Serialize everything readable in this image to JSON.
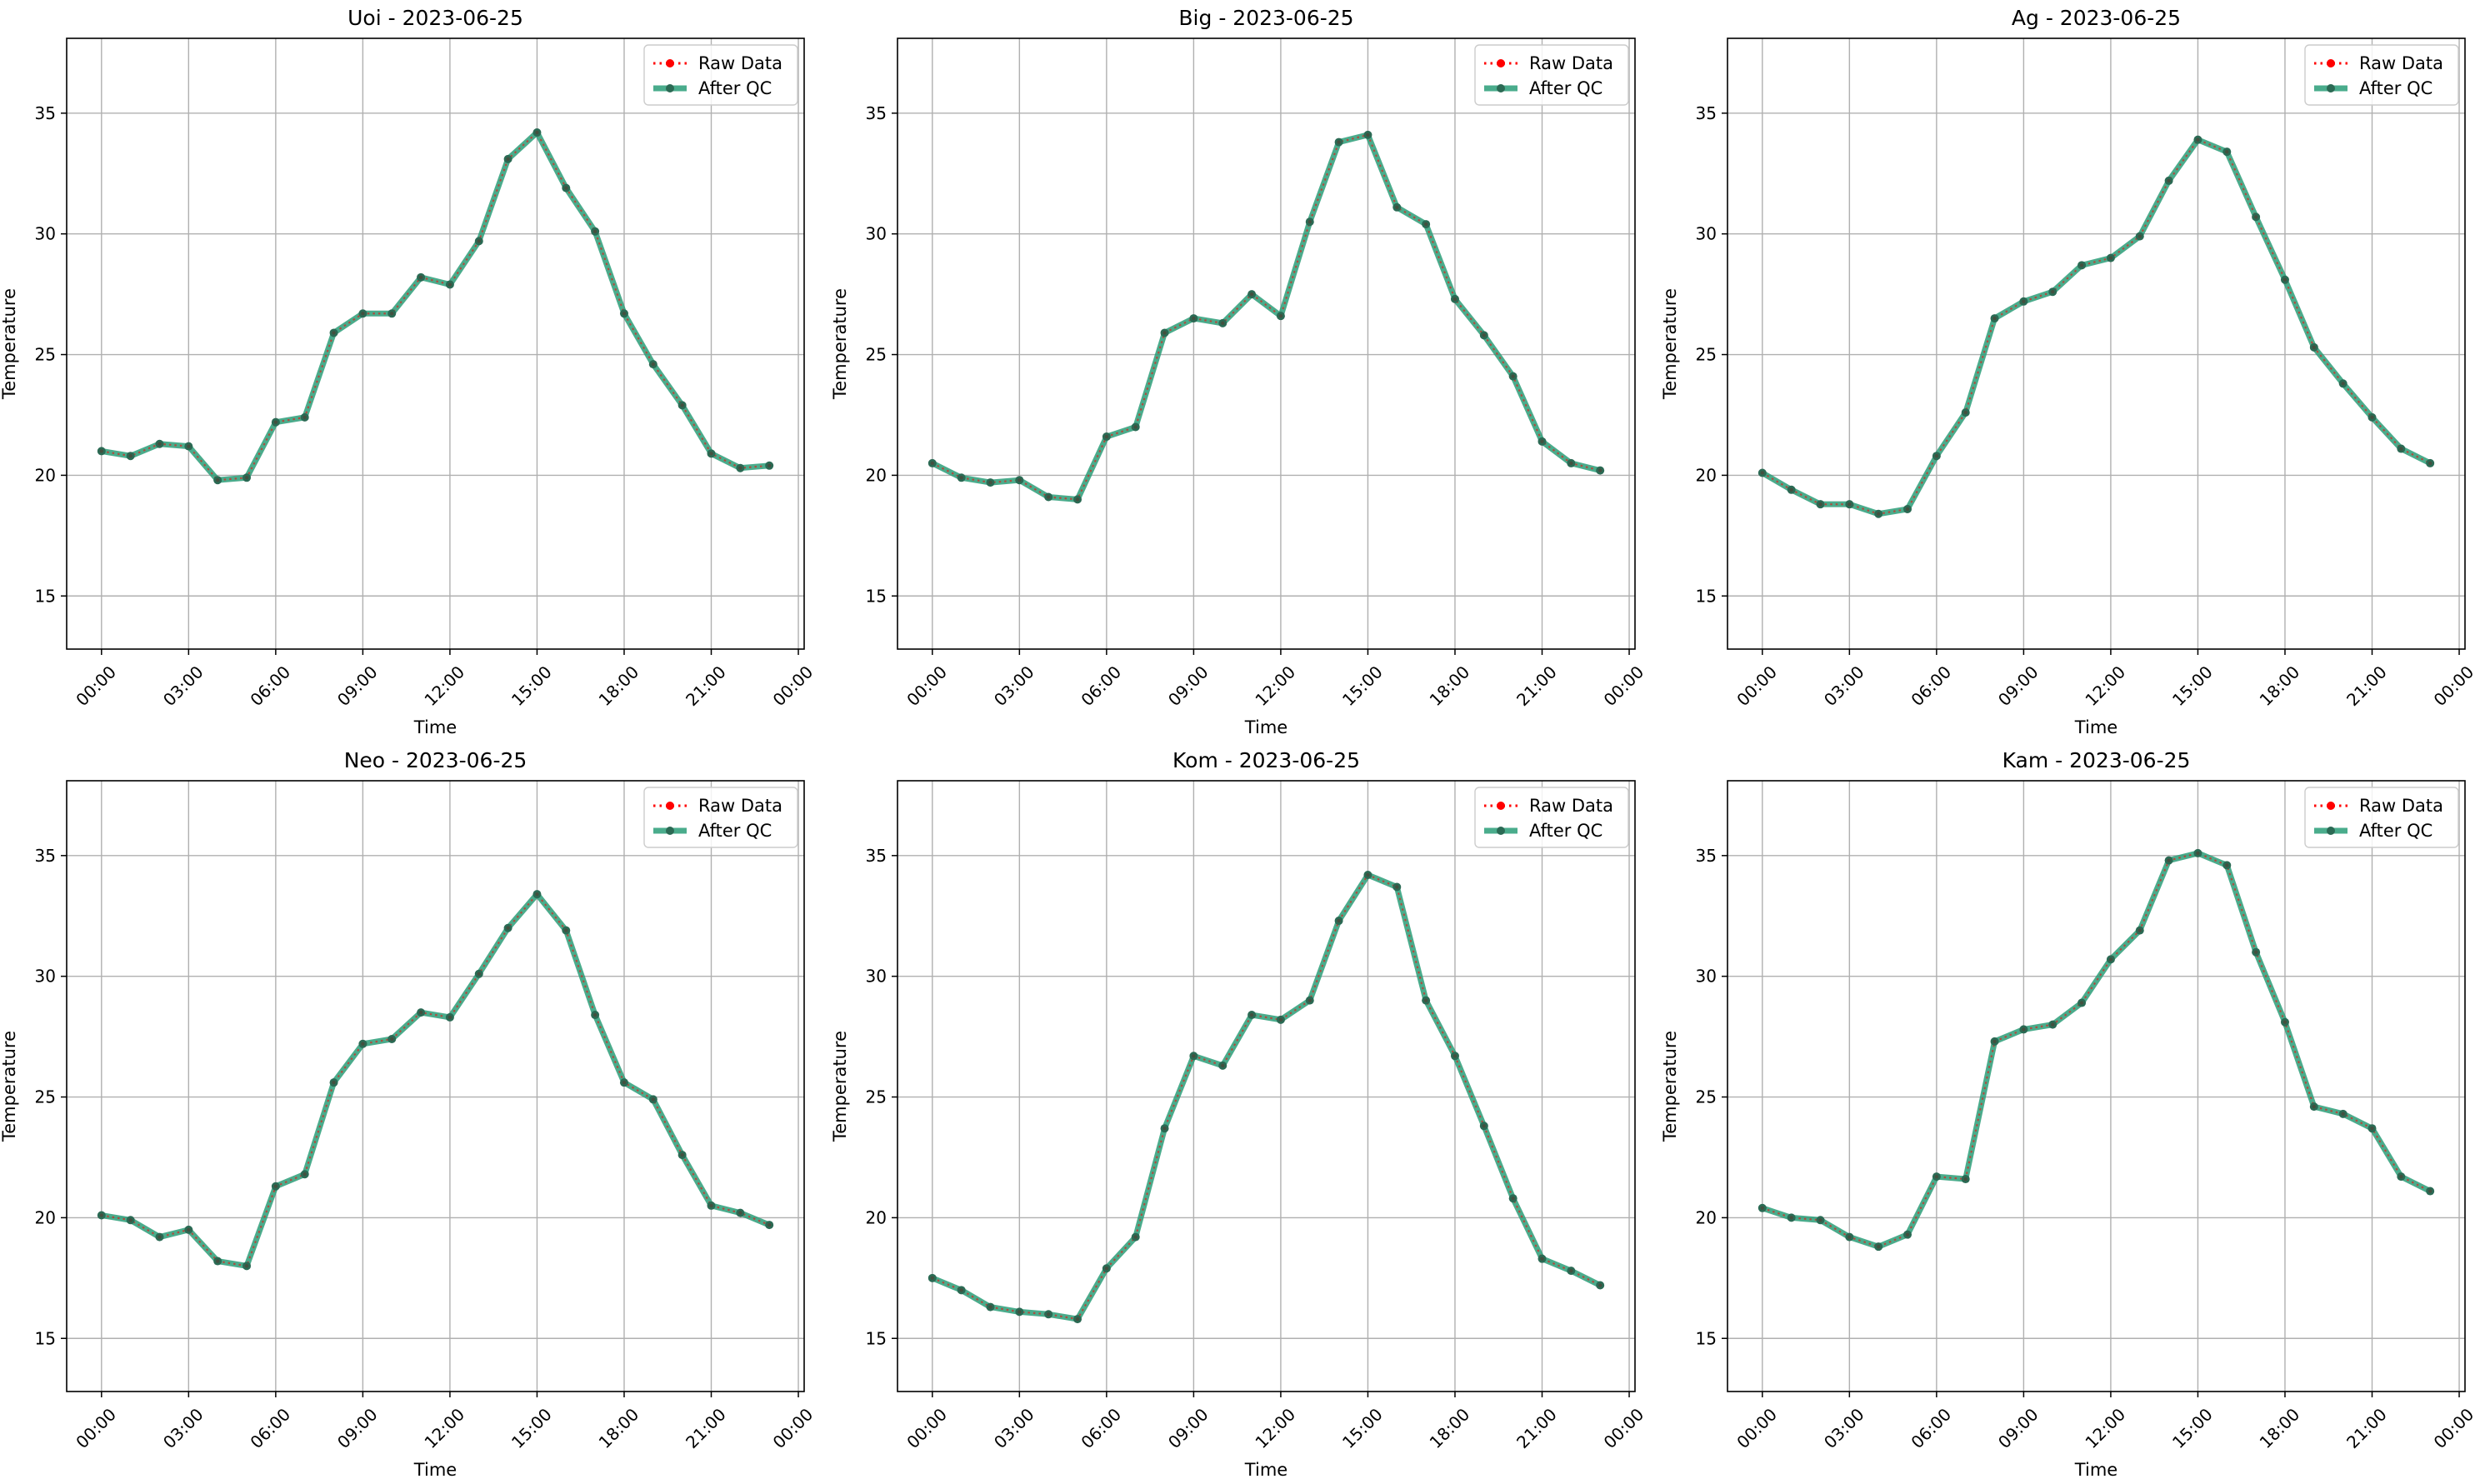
{
  "chart_data": [
    {
      "type": "line",
      "title": "Uoi - 2023-06-25",
      "xlabel": "Time",
      "ylabel": "Temperature",
      "x_ticks": [
        "00:00",
        "03:00",
        "06:00",
        "09:00",
        "12:00",
        "15:00",
        "18:00",
        "21:00",
        "00:00"
      ],
      "y_ticks": [
        15,
        20,
        25,
        30,
        35
      ],
      "xlim": [
        -1.2,
        24.2
      ],
      "ylim": [
        12.8,
        38.1
      ],
      "grid": true,
      "legend_placement": "top-right",
      "x": [
        0,
        1,
        2,
        3,
        4,
        5,
        6,
        7,
        8,
        9,
        10,
        11,
        12,
        13,
        14,
        15,
        16,
        17,
        18,
        19,
        20,
        21,
        22,
        23
      ],
      "series": [
        {
          "name": "Raw Data",
          "color": "#ff0000",
          "values": [
            21.0,
            20.8,
            21.3,
            21.2,
            19.8,
            19.9,
            22.2,
            22.4,
            25.9,
            26.7,
            26.7,
            28.2,
            27.9,
            29.7,
            33.1,
            34.2,
            31.9,
            30.1,
            26.7,
            24.6,
            22.9,
            20.9,
            20.3,
            20.4
          ]
        },
        {
          "name": "After QC",
          "color": "#2a9d78",
          "values": [
            21.0,
            20.8,
            21.3,
            21.2,
            19.8,
            19.9,
            22.2,
            22.4,
            25.9,
            26.7,
            26.7,
            28.2,
            27.9,
            29.7,
            33.1,
            34.2,
            31.9,
            30.1,
            26.7,
            24.6,
            22.9,
            20.9,
            20.3,
            20.4
          ]
        }
      ]
    },
    {
      "type": "line",
      "title": "Big - 2023-06-25",
      "xlabel": "Time",
      "ylabel": "Temperature",
      "x_ticks": [
        "00:00",
        "03:00",
        "06:00",
        "09:00",
        "12:00",
        "15:00",
        "18:00",
        "21:00",
        "00:00"
      ],
      "y_ticks": [
        15,
        20,
        25,
        30,
        35
      ],
      "xlim": [
        -1.2,
        24.2
      ],
      "ylim": [
        12.8,
        38.1
      ],
      "grid": true,
      "legend_placement": "top-right",
      "x": [
        0,
        1,
        2,
        3,
        4,
        5,
        6,
        7,
        8,
        9,
        10,
        11,
        12,
        13,
        14,
        15,
        16,
        17,
        18,
        19,
        20,
        21,
        22,
        23
      ],
      "series": [
        {
          "name": "Raw Data",
          "color": "#ff0000",
          "values": [
            20.5,
            19.9,
            19.7,
            19.8,
            19.1,
            19.0,
            21.6,
            22.0,
            25.9,
            26.5,
            26.3,
            27.5,
            26.6,
            30.5,
            33.8,
            34.1,
            31.1,
            30.4,
            27.3,
            25.8,
            24.1,
            21.4,
            20.5,
            20.2
          ]
        },
        {
          "name": "After QC",
          "color": "#2a9d78",
          "values": [
            20.5,
            19.9,
            19.7,
            19.8,
            19.1,
            19.0,
            21.6,
            22.0,
            25.9,
            26.5,
            26.3,
            27.5,
            26.6,
            30.5,
            33.8,
            34.1,
            31.1,
            30.4,
            27.3,
            25.8,
            24.1,
            21.4,
            20.5,
            20.2
          ]
        }
      ]
    },
    {
      "type": "line",
      "title": "Ag - 2023-06-25",
      "xlabel": "Time",
      "ylabel": "Temperature",
      "x_ticks": [
        "00:00",
        "03:00",
        "06:00",
        "09:00",
        "12:00",
        "15:00",
        "18:00",
        "21:00",
        "00:00"
      ],
      "y_ticks": [
        15,
        20,
        25,
        30,
        35
      ],
      "xlim": [
        -1.2,
        24.2
      ],
      "ylim": [
        12.8,
        38.1
      ],
      "grid": true,
      "legend_placement": "top-right",
      "x": [
        0,
        1,
        2,
        3,
        4,
        5,
        6,
        7,
        8,
        9,
        10,
        11,
        12,
        13,
        14,
        15,
        16,
        17,
        18,
        19,
        20,
        21,
        22,
        23
      ],
      "series": [
        {
          "name": "Raw Data",
          "color": "#ff0000",
          "values": [
            20.1,
            19.4,
            18.8,
            18.8,
            18.4,
            18.6,
            20.8,
            22.6,
            26.5,
            27.2,
            27.6,
            28.7,
            29.0,
            29.9,
            32.2,
            33.9,
            33.4,
            30.7,
            28.1,
            25.3,
            23.8,
            22.4,
            21.1,
            20.5
          ]
        },
        {
          "name": "After QC",
          "color": "#2a9d78",
          "values": [
            20.1,
            19.4,
            18.8,
            18.8,
            18.4,
            18.6,
            20.8,
            22.6,
            26.5,
            27.2,
            27.6,
            28.7,
            29.0,
            29.9,
            32.2,
            33.9,
            33.4,
            30.7,
            28.1,
            25.3,
            23.8,
            22.4,
            21.1,
            20.5
          ]
        }
      ]
    },
    {
      "type": "line",
      "title": "Neo - 2023-06-25",
      "xlabel": "Time",
      "ylabel": "Temperature",
      "x_ticks": [
        "00:00",
        "03:00",
        "06:00",
        "09:00",
        "12:00",
        "15:00",
        "18:00",
        "21:00",
        "00:00"
      ],
      "y_ticks": [
        15,
        20,
        25,
        30,
        35
      ],
      "xlim": [
        -1.2,
        24.2
      ],
      "ylim": [
        12.8,
        38.1
      ],
      "grid": true,
      "legend_placement": "top-right",
      "x": [
        0,
        1,
        2,
        3,
        4,
        5,
        6,
        7,
        8,
        9,
        10,
        11,
        12,
        13,
        14,
        15,
        16,
        17,
        18,
        19,
        20,
        21,
        22,
        23
      ],
      "series": [
        {
          "name": "Raw Data",
          "color": "#ff0000",
          "values": [
            20.1,
            19.9,
            19.2,
            19.5,
            18.2,
            18.0,
            21.3,
            21.8,
            25.6,
            27.2,
            27.4,
            28.5,
            28.3,
            30.1,
            32.0,
            33.4,
            31.9,
            28.4,
            25.6,
            24.9,
            22.6,
            20.5,
            20.2,
            19.7
          ]
        },
        {
          "name": "After QC",
          "color": "#2a9d78",
          "values": [
            20.1,
            19.9,
            19.2,
            19.5,
            18.2,
            18.0,
            21.3,
            21.8,
            25.6,
            27.2,
            27.4,
            28.5,
            28.3,
            30.1,
            32.0,
            33.4,
            31.9,
            28.4,
            25.6,
            24.9,
            22.6,
            20.5,
            20.2,
            19.7
          ]
        }
      ]
    },
    {
      "type": "line",
      "title": "Kom - 2023-06-25",
      "xlabel": "Time",
      "ylabel": "Temperature",
      "x_ticks": [
        "00:00",
        "03:00",
        "06:00",
        "09:00",
        "12:00",
        "15:00",
        "18:00",
        "21:00",
        "00:00"
      ],
      "y_ticks": [
        15,
        20,
        25,
        30,
        35
      ],
      "xlim": [
        -1.2,
        24.2
      ],
      "ylim": [
        12.8,
        38.1
      ],
      "grid": true,
      "legend_placement": "top-right",
      "x": [
        0,
        1,
        2,
        3,
        4,
        5,
        6,
        7,
        8,
        9,
        10,
        11,
        12,
        13,
        14,
        15,
        16,
        17,
        18,
        19,
        20,
        21,
        22,
        23
      ],
      "series": [
        {
          "name": "Raw Data",
          "color": "#ff0000",
          "values": [
            17.5,
            17.0,
            16.3,
            16.1,
            16.0,
            15.8,
            17.9,
            19.2,
            23.7,
            26.7,
            26.3,
            28.4,
            28.2,
            29.0,
            32.3,
            34.2,
            33.7,
            29.0,
            26.7,
            23.8,
            20.8,
            18.3,
            17.8,
            17.2
          ]
        },
        {
          "name": "After QC",
          "color": "#2a9d78",
          "values": [
            17.5,
            17.0,
            16.3,
            16.1,
            16.0,
            15.8,
            17.9,
            19.2,
            23.7,
            26.7,
            26.3,
            28.4,
            28.2,
            29.0,
            32.3,
            34.2,
            33.7,
            29.0,
            26.7,
            23.8,
            20.8,
            18.3,
            17.8,
            17.2
          ]
        }
      ]
    },
    {
      "type": "line",
      "title": "Kam - 2023-06-25",
      "xlabel": "Time",
      "ylabel": "Temperature",
      "x_ticks": [
        "00:00",
        "03:00",
        "06:00",
        "09:00",
        "12:00",
        "15:00",
        "18:00",
        "21:00",
        "00:00"
      ],
      "y_ticks": [
        15,
        20,
        25,
        30,
        35
      ],
      "xlim": [
        -1.2,
        24.2
      ],
      "ylim": [
        12.8,
        38.1
      ],
      "grid": true,
      "legend_placement": "top-right",
      "x": [
        0,
        1,
        2,
        3,
        4,
        5,
        6,
        7,
        8,
        9,
        10,
        11,
        12,
        13,
        14,
        15,
        16,
        17,
        18,
        19,
        20,
        21,
        22,
        23
      ],
      "series": [
        {
          "name": "Raw Data",
          "color": "#ff0000",
          "values": [
            20.4,
            20.0,
            19.9,
            19.2,
            18.8,
            19.3,
            21.7,
            21.6,
            27.3,
            27.8,
            28.0,
            28.9,
            30.7,
            31.9,
            34.8,
            35.1,
            34.6,
            31.0,
            28.1,
            24.6,
            24.3,
            23.7,
            21.7,
            21.1
          ]
        },
        {
          "name": "After QC",
          "color": "#2a9d78",
          "values": [
            20.4,
            20.0,
            19.9,
            19.2,
            18.8,
            19.3,
            21.7,
            21.6,
            27.3,
            27.8,
            28.0,
            28.9,
            30.7,
            31.9,
            34.8,
            35.1,
            34.6,
            31.0,
            28.1,
            24.6,
            24.3,
            23.7,
            21.7,
            21.1
          ]
        }
      ]
    }
  ]
}
